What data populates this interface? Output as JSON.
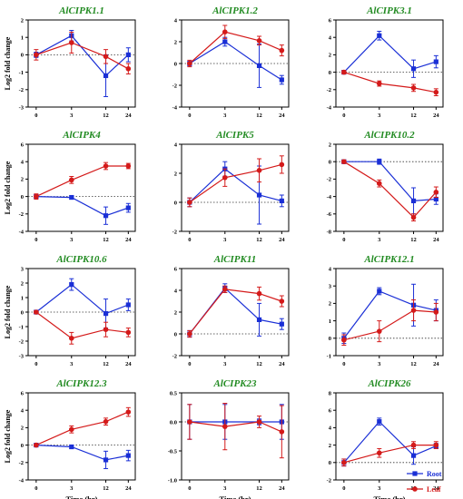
{
  "colors": {
    "root": "#1a2fd6",
    "leaf": "#d41a1a",
    "title": "#228b22",
    "axis": "#000000"
  },
  "legend": {
    "root_label": "Root",
    "leaf_label": "Leaf",
    "placement": "bottom-right"
  },
  "chart_data": [
    {
      "type": "line",
      "title": "AlCIPK1.1",
      "xlabel": "",
      "ylabel": "Log2 fold  change",
      "x": [
        0,
        3,
        12,
        24
      ],
      "x_tick_labels": [
        "0",
        "3",
        "12",
        "24"
      ],
      "ylim": [
        -3,
        2
      ],
      "yticks": [
        -3,
        -2,
        -1,
        0,
        1,
        2
      ],
      "series": [
        {
          "name": "Root",
          "values": [
            0,
            1.1,
            -1.2,
            0
          ],
          "errors": [
            0.15,
            0.3,
            1.2,
            0.4
          ]
        },
        {
          "name": "Leaf",
          "values": [
            0,
            0.7,
            -0.1,
            -0.8
          ],
          "errors": [
            0.3,
            0.6,
            0.4,
            0.3
          ]
        }
      ]
    },
    {
      "type": "line",
      "title": "AlCIPK1.2",
      "xlabel": "",
      "ylabel": "",
      "x": [
        0,
        3,
        12,
        24
      ],
      "x_tick_labels": [
        "0",
        "3",
        "12",
        "24"
      ],
      "ylim": [
        -4,
        4
      ],
      "yticks": [
        -4,
        -2,
        0,
        2,
        4
      ],
      "series": [
        {
          "name": "Root",
          "values": [
            0,
            2,
            -0.2,
            -1.5
          ],
          "errors": [
            0.2,
            0.4,
            2.0,
            0.4
          ]
        },
        {
          "name": "Leaf",
          "values": [
            0,
            2.9,
            2.1,
            1.2
          ],
          "errors": [
            0.3,
            0.6,
            0.4,
            0.5
          ]
        }
      ]
    },
    {
      "type": "line",
      "title": "AlCIPK3.1",
      "xlabel": "",
      "ylabel": "",
      "x": [
        0,
        3,
        12,
        24
      ],
      "x_tick_labels": [
        "0",
        "3",
        "12",
        "24"
      ],
      "ylim": [
        -4,
        6
      ],
      "yticks": [
        -4,
        -2,
        0,
        2,
        4,
        6
      ],
      "series": [
        {
          "name": "Root",
          "values": [
            0,
            4.2,
            0.4,
            1.2
          ],
          "errors": [
            0.2,
            0.5,
            1.0,
            0.7
          ]
        },
        {
          "name": "Leaf",
          "values": [
            0,
            -1.3,
            -1.8,
            -2.3
          ],
          "errors": [
            0.2,
            0.3,
            0.4,
            0.4
          ]
        }
      ]
    },
    {
      "type": "line",
      "title": "AlCIPK4",
      "xlabel": "",
      "ylabel": "Log2 fold  change",
      "x": [
        0,
        3,
        12,
        24
      ],
      "x_tick_labels": [
        "0",
        "3",
        "12",
        "24"
      ],
      "ylim": [
        -4,
        6
      ],
      "yticks": [
        -4,
        -2,
        0,
        2,
        4,
        6
      ],
      "series": [
        {
          "name": "Root",
          "values": [
            0,
            -0.1,
            -2.2,
            -1.3
          ],
          "errors": [
            0.2,
            0.2,
            1.0,
            0.5
          ]
        },
        {
          "name": "Leaf",
          "values": [
            0,
            1.9,
            3.5,
            3.5
          ],
          "errors": [
            0.3,
            0.4,
            0.4,
            0.3
          ]
        }
      ]
    },
    {
      "type": "line",
      "title": "AlCIPK5",
      "xlabel": "",
      "ylabel": "",
      "x": [
        0,
        3,
        12,
        24
      ],
      "x_tick_labels": [
        "0",
        "3",
        "12",
        "24"
      ],
      "ylim": [
        -2,
        4
      ],
      "yticks": [
        -2,
        0,
        2,
        4
      ],
      "series": [
        {
          "name": "Root",
          "values": [
            0,
            2.3,
            0.5,
            0.1
          ],
          "errors": [
            0.3,
            0.5,
            2.0,
            0.4
          ]
        },
        {
          "name": "Leaf",
          "values": [
            0,
            1.7,
            2.2,
            2.6
          ],
          "errors": [
            0.3,
            0.6,
            0.8,
            0.6
          ]
        }
      ]
    },
    {
      "type": "line",
      "title": "AlCIPK10.2",
      "xlabel": "",
      "ylabel": "",
      "x": [
        0,
        3,
        12,
        24
      ],
      "x_tick_labels": [
        "0",
        "3",
        "12",
        "24"
      ],
      "ylim": [
        -8,
        2
      ],
      "yticks": [
        -8,
        -6,
        -4,
        -2,
        0,
        2
      ],
      "series": [
        {
          "name": "Root",
          "values": [
            0,
            0,
            -4.5,
            -4.3
          ],
          "errors": [
            0.2,
            0.3,
            1.5,
            0.6
          ]
        },
        {
          "name": "Leaf",
          "values": [
            0,
            -2.5,
            -6.4,
            -3.5
          ],
          "errors": [
            0.2,
            0.4,
            0.4,
            0.6
          ]
        }
      ]
    },
    {
      "type": "line",
      "title": "AlCIPK10.6",
      "xlabel": "",
      "ylabel": "Log2 fold  change",
      "x": [
        0,
        3,
        12,
        24
      ],
      "x_tick_labels": [
        "0",
        "3",
        "12",
        "24"
      ],
      "ylim": [
        -3,
        3
      ],
      "yticks": [
        -3,
        -2,
        -1,
        0,
        1,
        2,
        3
      ],
      "series": [
        {
          "name": "Root",
          "values": [
            0,
            1.9,
            -0.1,
            0.5
          ],
          "errors": [
            0.1,
            0.4,
            1.0,
            0.4
          ]
        },
        {
          "name": "Leaf",
          "values": [
            0,
            -1.8,
            -1.2,
            -1.4
          ],
          "errors": [
            0.1,
            0.4,
            0.5,
            0.3
          ]
        }
      ]
    },
    {
      "type": "line",
      "title": "AlCIPK11",
      "xlabel": "",
      "ylabel": "",
      "x": [
        0,
        3,
        12,
        24
      ],
      "x_tick_labels": [
        "0",
        "3",
        "12",
        "24"
      ],
      "ylim": [
        -2,
        6
      ],
      "yticks": [
        -2,
        0,
        2,
        4,
        6
      ],
      "series": [
        {
          "name": "Root",
          "values": [
            0,
            4.2,
            1.3,
            0.9
          ],
          "errors": [
            0.3,
            0.4,
            1.5,
            0.5
          ]
        },
        {
          "name": "Leaf",
          "values": [
            0,
            4.1,
            3.7,
            3
          ],
          "errors": [
            0.3,
            0.3,
            0.6,
            0.5
          ]
        }
      ]
    },
    {
      "type": "line",
      "title": "AlCIPK12.1",
      "xlabel": "",
      "ylabel": "",
      "x": [
        0,
        3,
        12,
        24
      ],
      "x_tick_labels": [
        "0",
        "3",
        "12",
        "24"
      ],
      "ylim": [
        -1,
        4
      ],
      "yticks": [
        -1,
        0,
        1,
        2,
        3,
        4
      ],
      "series": [
        {
          "name": "Root",
          "values": [
            0,
            2.7,
            1.9,
            1.6
          ],
          "errors": [
            0.3,
            0.2,
            1.2,
            0.6
          ]
        },
        {
          "name": "Leaf",
          "values": [
            -0.1,
            0.4,
            1.6,
            1.5
          ],
          "errors": [
            0.3,
            0.6,
            0.6,
            0.5
          ]
        }
      ]
    },
    {
      "type": "line",
      "title": "AlCIPK12.3",
      "xlabel": "Time (hr)",
      "ylabel": "Log2 fold  change",
      "x": [
        0,
        3,
        12,
        24
      ],
      "x_tick_labels": [
        "0",
        "3",
        "12",
        "24"
      ],
      "ylim": [
        -4,
        6
      ],
      "yticks": [
        -4,
        -2,
        0,
        2,
        4,
        6
      ],
      "series": [
        {
          "name": "Root",
          "values": [
            0,
            -0.2,
            -1.7,
            -1.2
          ],
          "errors": [
            0.1,
            0.2,
            1.0,
            0.6
          ]
        },
        {
          "name": "Leaf",
          "values": [
            0,
            1.8,
            2.7,
            3.8
          ],
          "errors": [
            0.1,
            0.4,
            0.4,
            0.5
          ]
        }
      ]
    },
    {
      "type": "line",
      "title": "AlCIPK23",
      "xlabel": "Time (hr)",
      "ylabel": "",
      "x": [
        0,
        3,
        12,
        24
      ],
      "x_tick_labels": [
        "0",
        "3",
        "12",
        "24"
      ],
      "ylim": [
        -1.0,
        0.5
      ],
      "yticks": [
        -1.0,
        -0.5,
        0.0,
        0.5
      ],
      "ytick_labels": [
        "-1.0",
        "-0.5",
        "0.0",
        "0.5"
      ],
      "series": [
        {
          "name": "Root",
          "values": [
            0,
            0,
            0,
            0
          ],
          "errors": [
            0.3,
            0.3,
            0.05,
            0.3
          ]
        },
        {
          "name": "Leaf",
          "values": [
            0,
            -0.08,
            0,
            -0.17
          ],
          "errors": [
            0.3,
            0.4,
            0.1,
            0.45
          ]
        }
      ]
    },
    {
      "type": "line",
      "title": "AlCIPK26",
      "xlabel": "Time (hr)",
      "ylabel": "",
      "x": [
        0,
        3,
        12,
        24
      ],
      "x_tick_labels": [
        "0",
        "3",
        "12",
        "24"
      ],
      "ylim": [
        -2,
        8
      ],
      "yticks": [
        -2,
        0,
        2,
        4,
        6,
        8
      ],
      "series": [
        {
          "name": "Root",
          "values": [
            0,
            4.7,
            0.8,
            1.9
          ],
          "errors": [
            0.4,
            0.4,
            1.0,
            0.3
          ]
        },
        {
          "name": "Leaf",
          "values": [
            0,
            1.1,
            2,
            2
          ],
          "errors": [
            0.4,
            0.5,
            0.4,
            0.4
          ]
        }
      ]
    }
  ]
}
